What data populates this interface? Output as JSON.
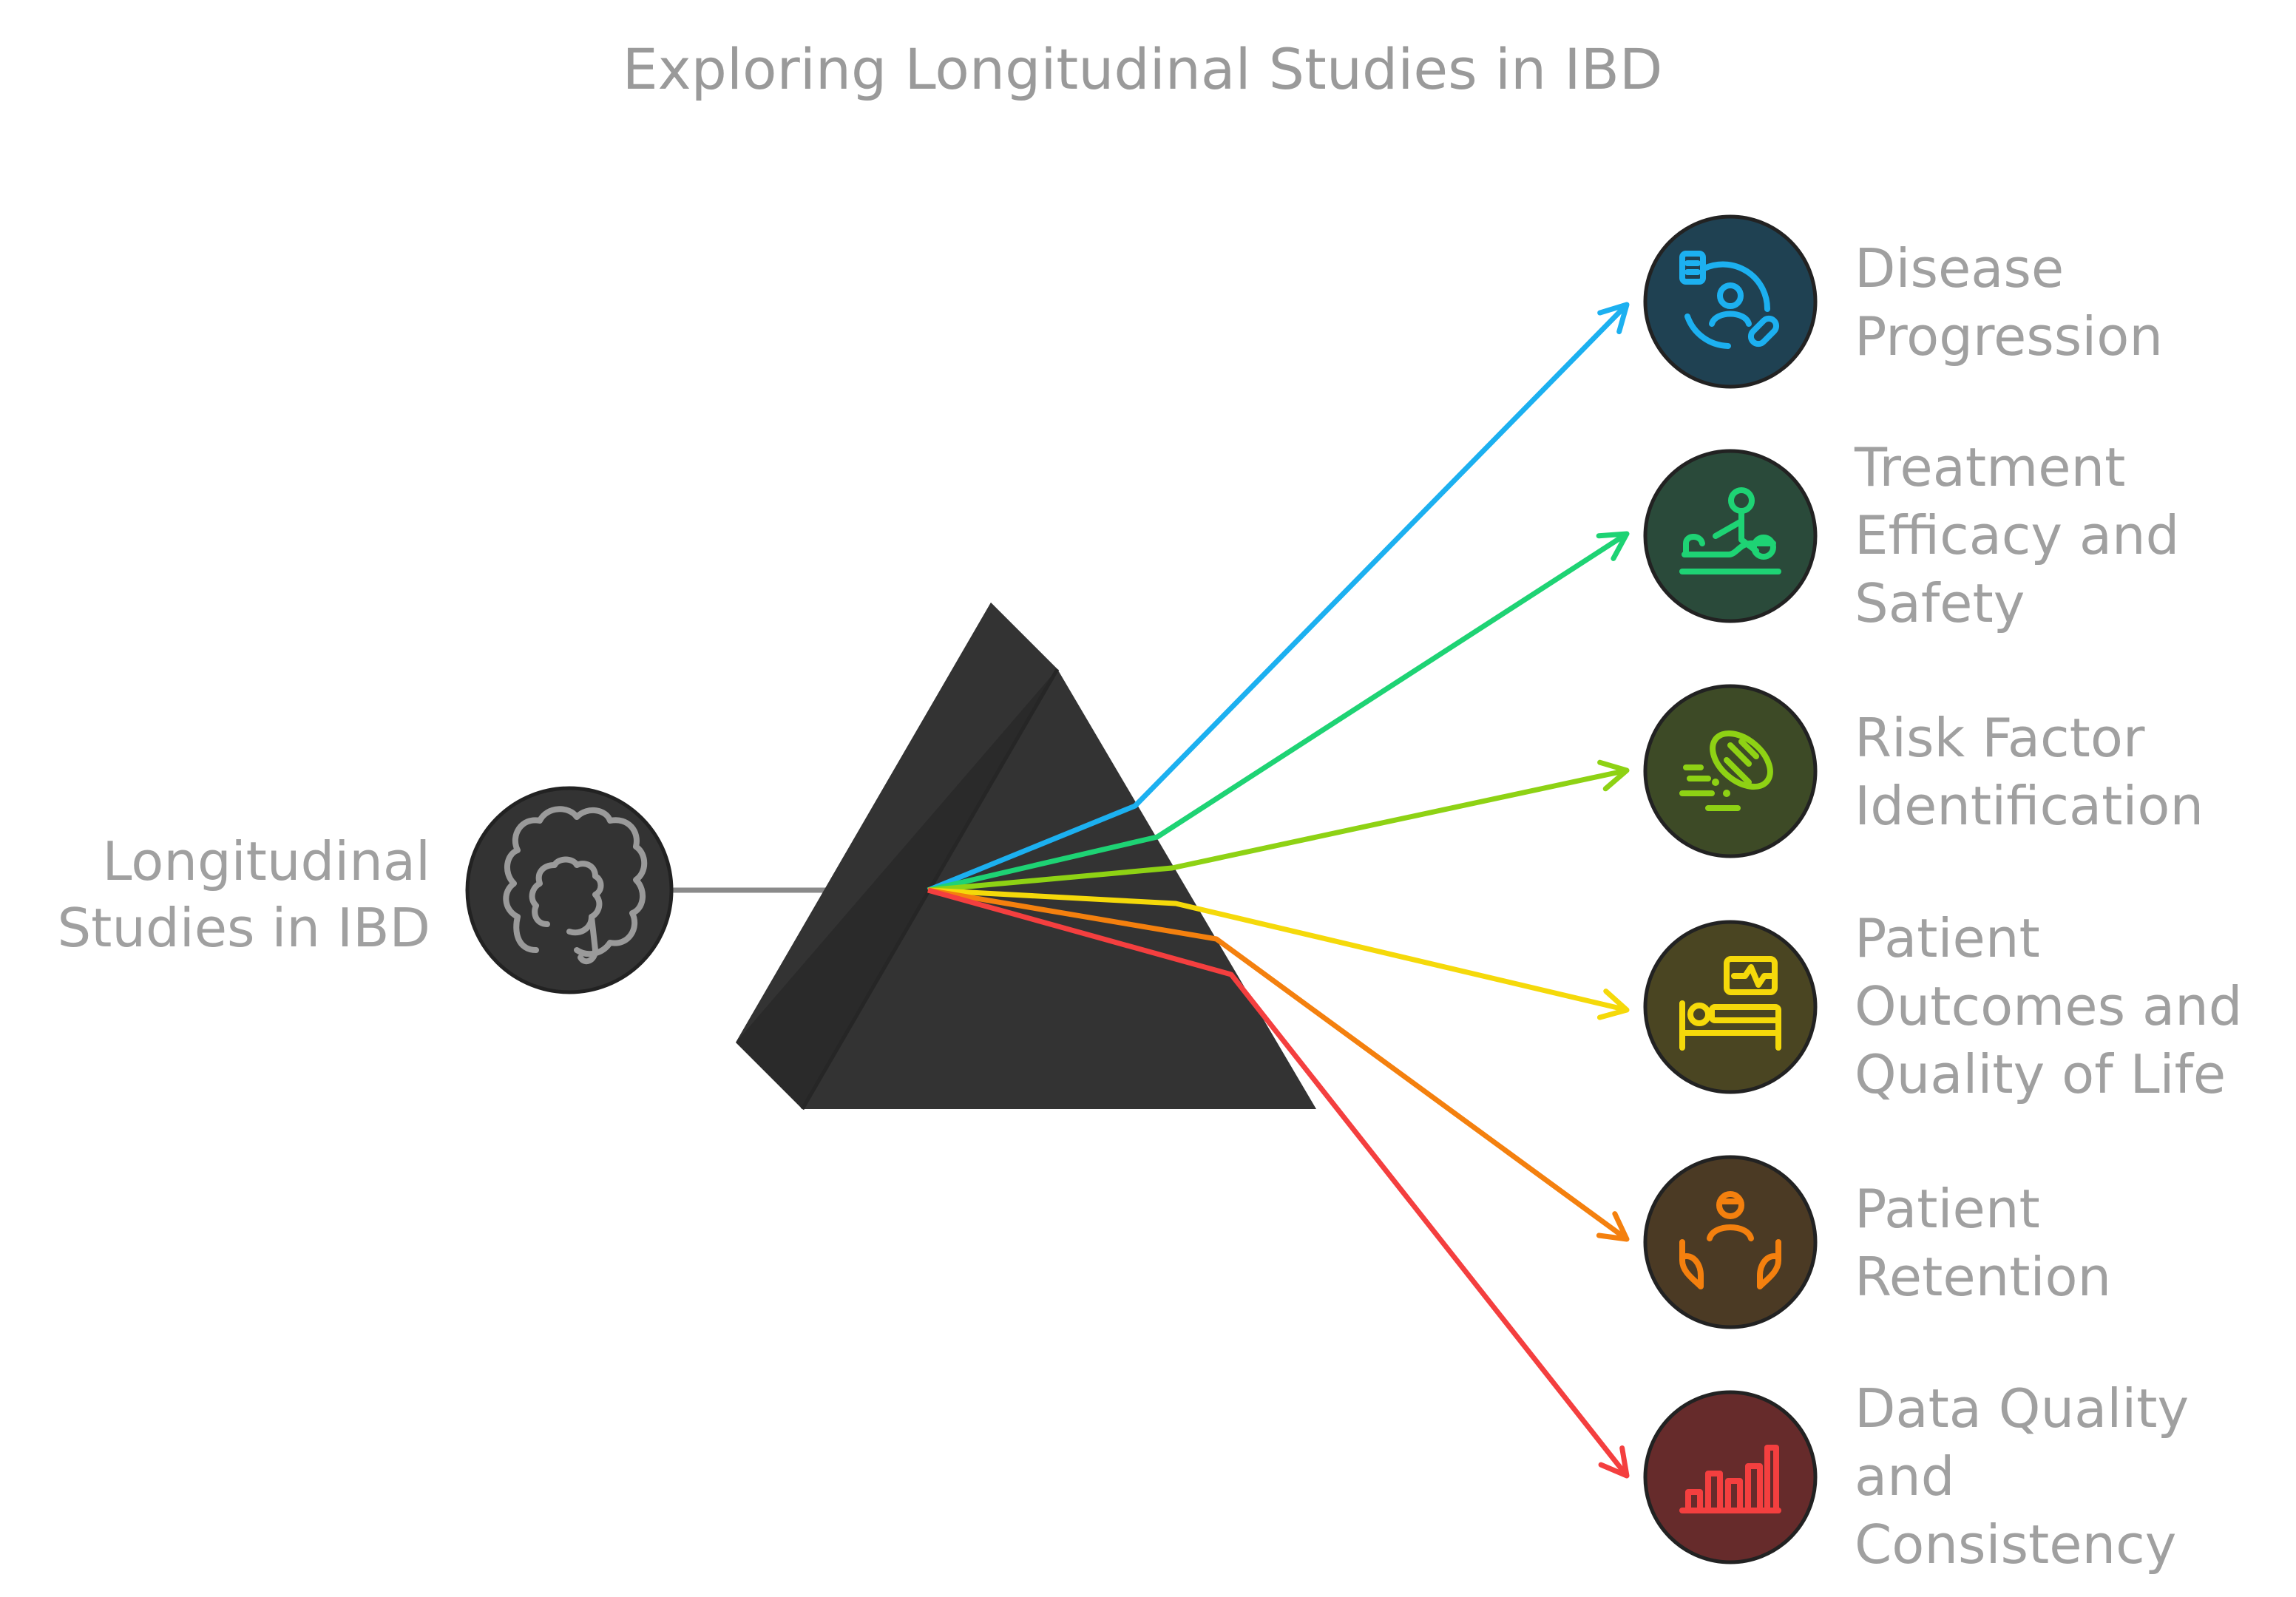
{
  "title": "Exploring Longitudinal Studies in IBD",
  "source": {
    "label_lines": [
      "Longitudinal",
      "Studies in IBD"
    ],
    "icon": "intestine-icon",
    "fill": "#333333",
    "icon_color": "#9a9a9a"
  },
  "prism": {
    "fill": "#333333"
  },
  "beam_color": "#8a8a8a",
  "outputs": [
    {
      "label_lines": [
        "Disease",
        "Progression"
      ],
      "icon": "patient-care-cycle-icon",
      "color": "#1cb0f0",
      "fill": "#1f4152"
    },
    {
      "label_lines": [
        "Treatment",
        "Efficacy and",
        "Safety"
      ],
      "icon": "massage-therapy-icon",
      "color": "#1ed374",
      "fill": "#2a4a3a"
    },
    {
      "label_lines": [
        "Risk Factor",
        "Identification"
      ],
      "icon": "bacteria-icon",
      "color": "#8ed214",
      "fill": "#3d4a26"
    },
    {
      "label_lines": [
        "Patient",
        "Outcomes and",
        "Quality of Life"
      ],
      "icon": "hospital-bed-icon",
      "color": "#f5d90a",
      "fill": "#4a4522"
    },
    {
      "label_lines": [
        "Patient",
        "Retention"
      ],
      "icon": "caring-hands-icon",
      "color": "#f4800e",
      "fill": "#4b3a24"
    },
    {
      "label_lines": [
        "Data Quality",
        "and",
        "Consistency"
      ],
      "icon": "bar-chart-icon",
      "color": "#f43f3f",
      "fill": "#662b2b"
    }
  ]
}
